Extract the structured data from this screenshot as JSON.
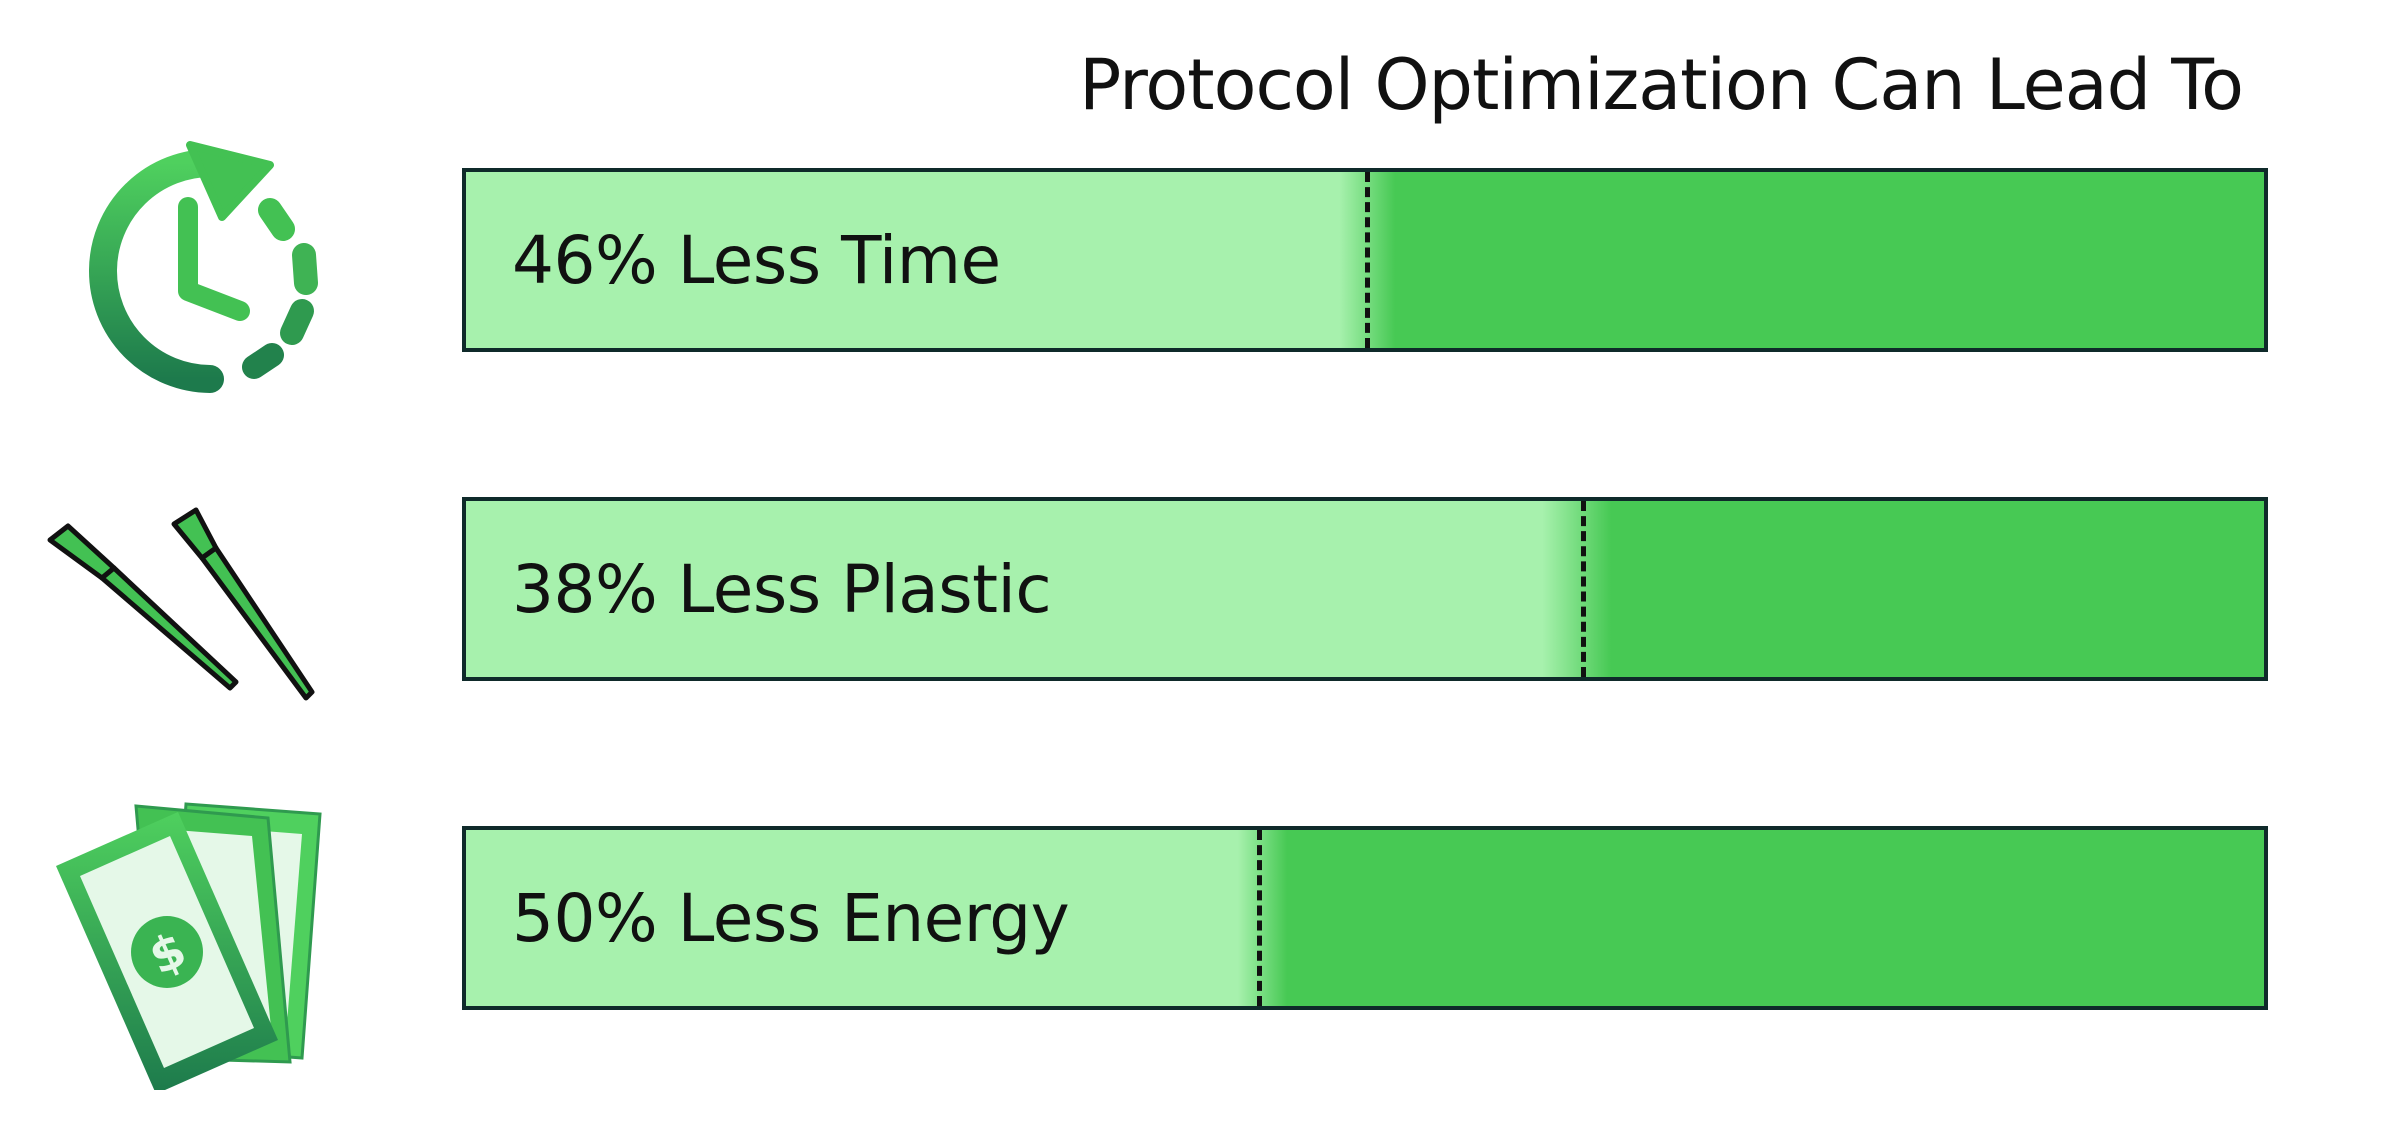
{
  "chart_data": {
    "type": "bar",
    "title": "Protocol Optimization Can Lead To",
    "categories": [
      "Time",
      "Plastic",
      "Energy"
    ],
    "values": [
      46,
      38,
      50
    ],
    "unit": "%",
    "orientation": "horizontal",
    "labels": [
      "46% Less Time",
      "38% Less Plastic",
      "50% Less Energy"
    ],
    "xlim": [
      0,
      100
    ],
    "grid": false,
    "icons": [
      "clock-arrow-icon",
      "pipette-tips-icon",
      "cash-bills-icon"
    ]
  },
  "colors": {
    "bar_dark": "#47c954",
    "bar_light": "#a7f1ad",
    "border": "#0f2a2a",
    "icon_green": "#43c153",
    "icon_dark": "#1d7a4c",
    "text": "#111111"
  }
}
